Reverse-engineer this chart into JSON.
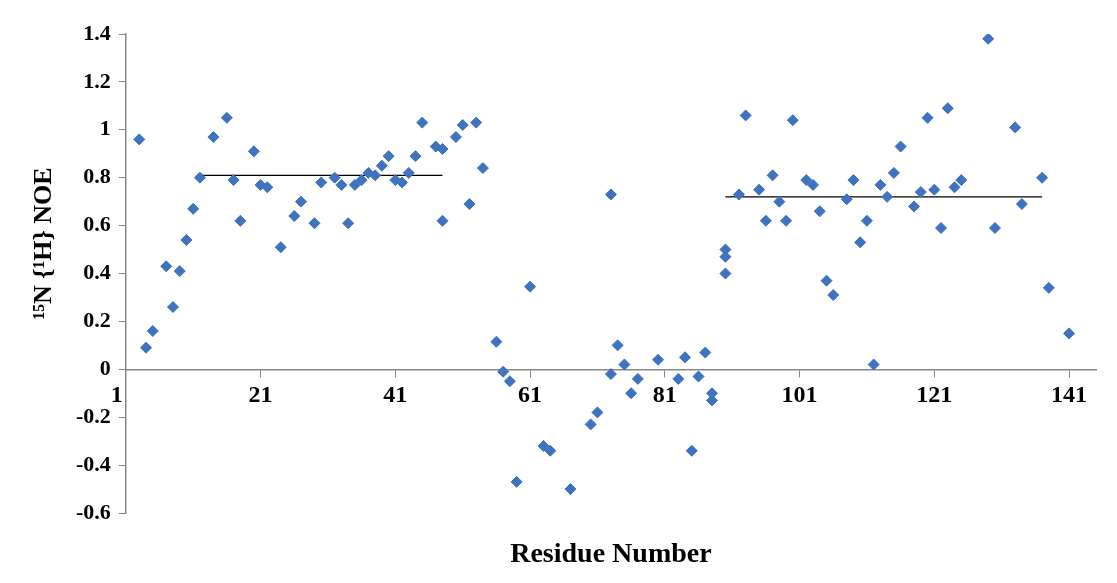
{
  "chart_data": {
    "type": "scatter",
    "xlabel": "Residue Number",
    "ylabel": "¹⁵N {¹H} NOE",
    "xlim": [
      1,
      145
    ],
    "xticks": [
      1,
      21,
      41,
      61,
      81,
      101,
      121,
      141
    ],
    "ylim": [
      -0.6,
      1.4
    ],
    "yticks": [
      -0.6,
      -0.4,
      -0.2,
      0,
      0.2,
      0.4,
      0.6,
      0.8,
      1,
      1.2,
      1.4
    ],
    "grid": false,
    "legend": false,
    "marker": "diamond",
    "series": [
      {
        "color": "#3f73bf",
        "x": [
          3,
          4,
          5,
          7,
          8,
          9,
          10,
          11,
          12,
          14,
          16,
          17,
          18,
          20,
          21,
          22,
          24,
          26,
          27,
          29,
          30,
          32,
          33,
          34,
          35,
          36,
          37,
          38,
          39,
          40,
          41,
          42,
          43,
          44,
          45,
          47,
          48,
          48,
          50,
          51,
          52,
          53,
          54,
          56,
          57,
          58,
          59,
          61,
          63,
          64,
          67,
          70,
          71,
          73,
          73,
          74,
          75,
          76,
          77,
          80,
          83,
          84,
          85,
          86,
          87,
          88,
          88,
          90,
          90,
          90,
          92,
          93,
          95,
          96,
          97,
          98,
          99,
          100,
          102,
          103,
          104,
          105,
          106,
          108,
          109,
          110,
          111,
          112,
          113,
          114,
          115,
          116,
          118,
          119,
          120,
          121,
          122,
          123,
          124,
          125,
          129,
          130,
          133,
          134,
          137,
          138,
          141
        ],
        "values": [
          0.96,
          0.09,
          0.16,
          0.43,
          0.26,
          0.41,
          0.54,
          0.67,
          0.8,
          0.97,
          1.05,
          0.79,
          0.62,
          0.91,
          0.77,
          0.76,
          0.51,
          0.64,
          0.7,
          0.61,
          0.78,
          0.8,
          0.77,
          0.61,
          0.77,
          0.79,
          0.82,
          0.81,
          0.85,
          0.89,
          0.79,
          0.78,
          0.82,
          0.89,
          1.03,
          0.93,
          0.62,
          0.92,
          0.97,
          1.02,
          0.69,
          1.03,
          0.84,
          0.115,
          -0.01,
          -0.05,
          -0.47,
          0.345,
          -0.32,
          -0.34,
          -0.5,
          -0.23,
          -0.18,
          -0.02,
          0.73,
          0.1,
          0.02,
          -0.1,
          -0.04,
          0.04,
          -0.04,
          0.05,
          -0.34,
          -0.03,
          0.07,
          -0.1,
          -0.13,
          0.5,
          0.47,
          0.4,
          0.73,
          1.06,
          0.75,
          0.62,
          0.81,
          0.7,
          0.62,
          1.04,
          0.79,
          0.77,
          0.66,
          0.37,
          0.31,
          0.71,
          0.79,
          0.53,
          0.62,
          0.02,
          0.77,
          0.72,
          0.82,
          0.93,
          0.68,
          0.74,
          1.05,
          0.75,
          0.59,
          1.09,
          0.76,
          0.79,
          1.38,
          0.59,
          1.01,
          0.69,
          0.8,
          0.34,
          0.15
        ]
      },
      {
        "type": "line",
        "marker": "none",
        "color": "#000000",
        "x": [
          12,
          48
        ],
        "values": [
          0.81,
          0.81
        ]
      },
      {
        "type": "line",
        "marker": "none",
        "color": "#000000",
        "x": [
          90,
          137
        ],
        "values": [
          0.72,
          0.72
        ]
      }
    ]
  }
}
